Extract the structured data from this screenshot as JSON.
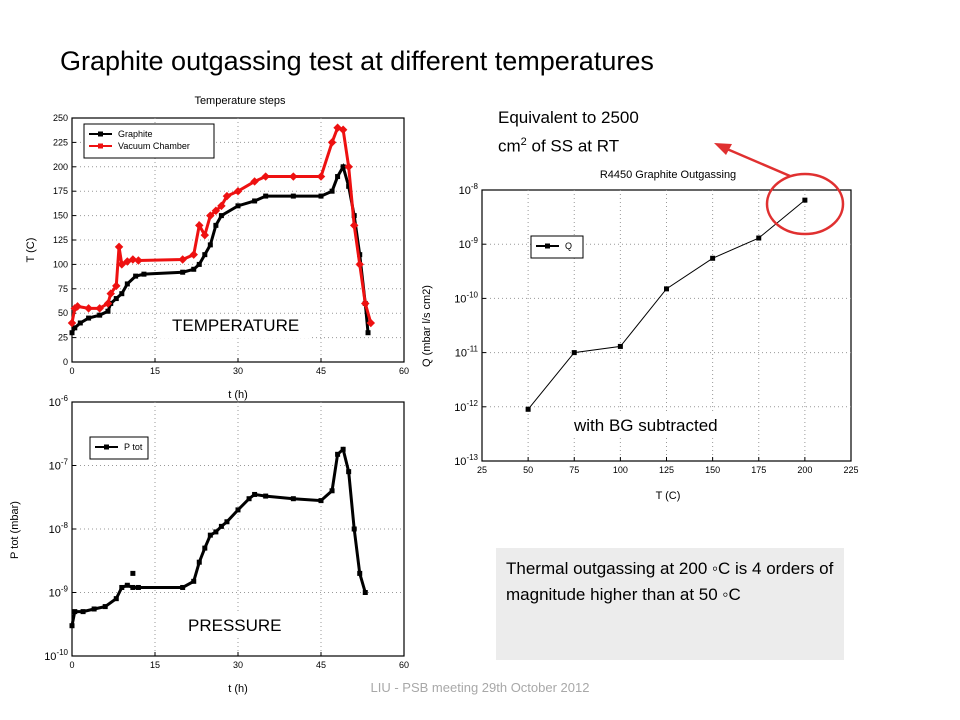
{
  "slide": {
    "title": "Graphite outgassing test at different temperatures",
    "footer": "LIU - PSB meeting 29th October 2012",
    "equivalent_line1": "Equivalent to 2500",
    "equivalent_line2_prefix": "cm",
    "equivalent_line2_sup": "2",
    "equivalent_line2_suffix": " of SS at RT",
    "note": "Thermal outgassing at 200 ◦C is 4 orders of magnitude higher than at 50 ◦C",
    "colors": {
      "arrow": "#e03030",
      "black_series": "#000000",
      "red_series": "#ee1111"
    }
  },
  "chart_data": [
    {
      "type": "line",
      "title": "Temperature steps",
      "xlabel": "t (h)",
      "ylabel": "T (C)",
      "xlim": [
        0,
        60
      ],
      "ylim": [
        0,
        250
      ],
      "xticks": [
        0,
        15,
        30,
        45,
        60
      ],
      "yticks": [
        0,
        25,
        50,
        75,
        100,
        125,
        150,
        175,
        200,
        225,
        250
      ],
      "overlay_label": "TEMPERATURE",
      "legend": "top-left",
      "grid": true,
      "series": [
        {
          "name": "Graphite",
          "color": "#000000",
          "x": [
            0,
            0.5,
            1.5,
            3,
            5,
            6.5,
            7,
            8,
            9,
            10,
            11.5,
            13,
            20,
            22,
            23,
            24,
            25,
            26,
            27,
            30,
            33,
            35,
            40,
            45,
            47,
            48,
            49,
            50,
            51,
            52,
            53,
            53.5
          ],
          "y": [
            30,
            35,
            40,
            45,
            48,
            52,
            60,
            65,
            70,
            80,
            88,
            90,
            92,
            95,
            100,
            110,
            120,
            140,
            150,
            160,
            165,
            170,
            170,
            170,
            175,
            190,
            200,
            180,
            150,
            110,
            60,
            30
          ]
        },
        {
          "name": "Vacuum Chamber",
          "color": "#ee1111",
          "x": [
            0,
            0.5,
            1,
            3,
            5,
            6.5,
            7,
            8,
            8.5,
            9,
            10,
            11,
            12,
            20,
            22,
            23,
            24,
            25,
            26,
            27,
            28,
            30,
            33,
            35,
            40,
            45,
            47,
            48,
            49,
            50,
            51,
            52,
            53,
            54
          ],
          "y": [
            40,
            55,
            57,
            55,
            55,
            60,
            70,
            78,
            118,
            100,
            103,
            105,
            104,
            105,
            110,
            140,
            130,
            150,
            155,
            160,
            170,
            175,
            185,
            190,
            190,
            190,
            225,
            240,
            238,
            200,
            140,
            100,
            60,
            40
          ]
        }
      ]
    },
    {
      "type": "line",
      "xlabel": "t (h)",
      "ylabel": "P tot (mbar)",
      "xlim": [
        0,
        60
      ],
      "ylim": [
        1e-10,
        1e-06
      ],
      "log_y": true,
      "xticks": [
        0,
        15,
        30,
        45,
        60
      ],
      "ytick_exponents": [
        -10,
        -9,
        -8,
        -7,
        -6
      ],
      "overlay_label": "PRESSURE",
      "legend": "top-right",
      "grid": true,
      "series": [
        {
          "name": "P tot",
          "color": "#000000",
          "x": [
            0,
            0.5,
            2,
            4,
            6,
            8,
            9,
            10,
            11,
            12,
            20,
            22,
            23,
            24,
            25,
            26,
            27,
            28,
            30,
            32,
            33,
            35,
            40,
            45,
            47,
            48,
            49,
            50,
            51,
            52,
            53
          ],
          "y": [
            3e-10,
            5e-10,
            5e-10,
            5.5e-10,
            6e-10,
            8e-10,
            1.2e-09,
            1.3e-09,
            1.2e-09,
            1.2e-09,
            1.2e-09,
            1.5e-09,
            3e-09,
            5e-09,
            8e-09,
            9e-09,
            1.1e-08,
            1.3e-08,
            2e-08,
            3e-08,
            3.5e-08,
            3.3e-08,
            3e-08,
            2.8e-08,
            4e-08,
            1.5e-07,
            1.8e-07,
            8e-08,
            1e-08,
            2e-09,
            1e-09
          ]
        },
        {
          "name": "",
          "color": "#000000",
          "x": [
            11
          ],
          "y": [
            2e-09
          ]
        }
      ]
    },
    {
      "type": "line",
      "title": "R4450 Graphite Outgassing",
      "xlabel": "T (C)",
      "ylabel": "Q (mbar l/s cm2)",
      "xlim": [
        25,
        225
      ],
      "ylim": [
        1e-13,
        1e-08
      ],
      "log_y": true,
      "xticks": [
        25,
        50,
        75,
        100,
        125,
        150,
        175,
        200,
        225
      ],
      "ytick_exponents": [
        -13,
        -12,
        -11,
        -10,
        -9,
        -8
      ],
      "overlay_label": "with BG subtracted",
      "legend": "top-left",
      "grid": true,
      "series": [
        {
          "name": "Q",
          "color": "#000000",
          "x": [
            50,
            75,
            100,
            125,
            150,
            175,
            200
          ],
          "y": [
            9e-13,
            1e-11,
            1.3e-11,
            1.5e-10,
            5.5e-10,
            1.3e-09,
            6.5e-09
          ]
        }
      ]
    }
  ]
}
